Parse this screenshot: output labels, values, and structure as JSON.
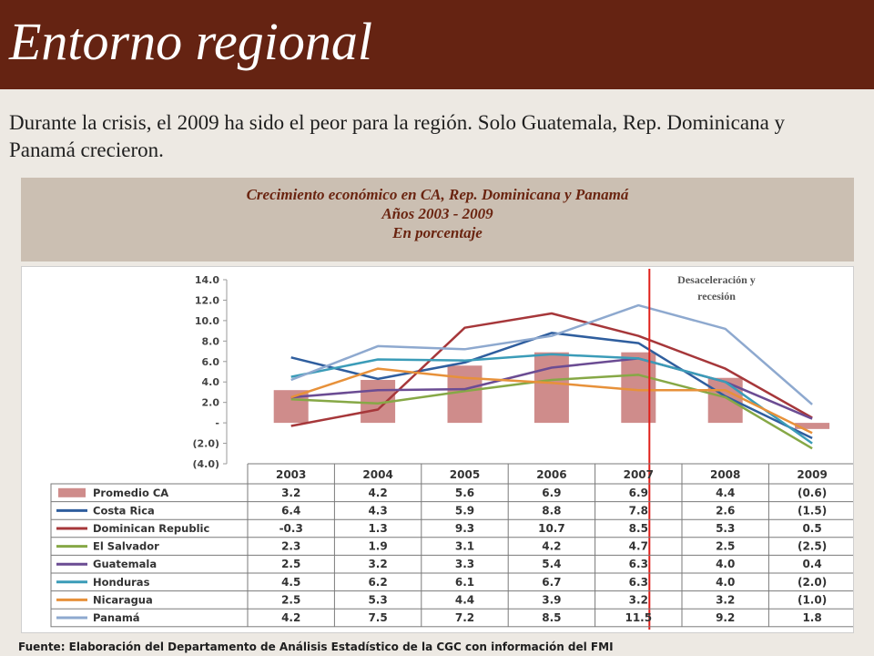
{
  "slide": {
    "title": "Entorno regional",
    "lead_text": "Durante la crisis, el 2009 ha sido el peor para la región.    Solo Guatemala, Rep. Dominicana y Panamá  crecieron.",
    "chart_title_line1": "Crecimiento económico en CA, Rep. Dominicana y Panamá",
    "chart_title_line2": "Años 2003 - 2009",
    "chart_title_line3": "En porcentaje",
    "annotation": "Desaceleración y recesión",
    "source": "Fuente:  Elaboración del Departamento de Análisis Estadístico de la CGC con información del FMI"
  },
  "colors": {
    "title_bar": "#652312",
    "background": "#ede9e3",
    "chart_header_bg": "#cbbfb2",
    "chart_header_text": "#6a2410",
    "marker_line": "#e0201b"
  },
  "chart_data": {
    "type": "bar",
    "categories": [
      "2003",
      "2004",
      "2005",
      "2006",
      "2007",
      "2008",
      "2009"
    ],
    "ylim": [
      -4,
      14
    ],
    "yticks": [
      14,
      12,
      10,
      8,
      6,
      4,
      2,
      0,
      -2,
      -4
    ],
    "ytick_labels": [
      "14.0",
      "12.0",
      "10.0",
      "8.0",
      "6.0",
      "4.0",
      "2.0",
      "-",
      "(2.0)",
      "(4.0)"
    ],
    "grid": false,
    "legend": "table-below",
    "marker_at": "2007",
    "bar_series": {
      "name": "Promedio CA",
      "color": "#cf8c8b",
      "values": [
        3.2,
        4.2,
        5.6,
        6.9,
        6.9,
        4.4,
        -0.6
      ],
      "labels": [
        "3.2",
        "4.2",
        "5.6",
        "6.9",
        "6.9",
        "4.4",
        "(0.6)"
      ]
    },
    "line_series": [
      {
        "name": "Costa Rica",
        "color": "#2f5e9e",
        "values": [
          6.4,
          4.3,
          5.9,
          8.8,
          7.8,
          2.6,
          -1.5
        ],
        "labels": [
          "6.4",
          "4.3",
          "5.9",
          "8.8",
          "7.8",
          "2.6",
          "(1.5)"
        ]
      },
      {
        "name": "Dominican Republic",
        "color": "#a6373a",
        "values": [
          -0.3,
          1.3,
          9.3,
          10.7,
          8.5,
          5.3,
          0.5
        ],
        "labels": [
          "-0.3",
          "1.3",
          "9.3",
          "10.7",
          "8.5",
          "5.3",
          "0.5"
        ]
      },
      {
        "name": "El Salvador",
        "color": "#86a846",
        "values": [
          2.3,
          1.9,
          3.1,
          4.2,
          4.7,
          2.5,
          -2.5
        ],
        "labels": [
          "2.3",
          "1.9",
          "3.1",
          "4.2",
          "4.7",
          "2.5",
          "(2.5)"
        ]
      },
      {
        "name": "Guatemala",
        "color": "#6b4c93",
        "values": [
          2.5,
          3.2,
          3.3,
          5.4,
          6.3,
          4.0,
          0.4
        ],
        "labels": [
          "2.5",
          "3.2",
          "3.3",
          "5.4",
          "6.3",
          "4.0",
          "0.4"
        ]
      },
      {
        "name": "Honduras",
        "color": "#3b9cb8",
        "values": [
          4.5,
          6.2,
          6.1,
          6.7,
          6.3,
          4.0,
          -2.0
        ],
        "labels": [
          "4.5",
          "6.2",
          "6.1",
          "6.7",
          "6.3",
          "4.0",
          "(2.0)"
        ]
      },
      {
        "name": "Nicaragua",
        "color": "#e7913a",
        "values": [
          2.5,
          5.3,
          4.4,
          3.9,
          3.2,
          3.2,
          -1.0
        ],
        "labels": [
          "2.5",
          "5.3",
          "4.4",
          "3.9",
          "3.2",
          "3.2",
          "(1.0)"
        ]
      },
      {
        "name": "Panamá",
        "color": "#8ea9cf",
        "values": [
          4.2,
          7.5,
          7.2,
          8.5,
          11.5,
          9.2,
          1.8
        ],
        "labels": [
          "4.2",
          "7.5",
          "7.2",
          "8.5",
          "11.5",
          "9.2",
          "1.8"
        ]
      }
    ]
  }
}
